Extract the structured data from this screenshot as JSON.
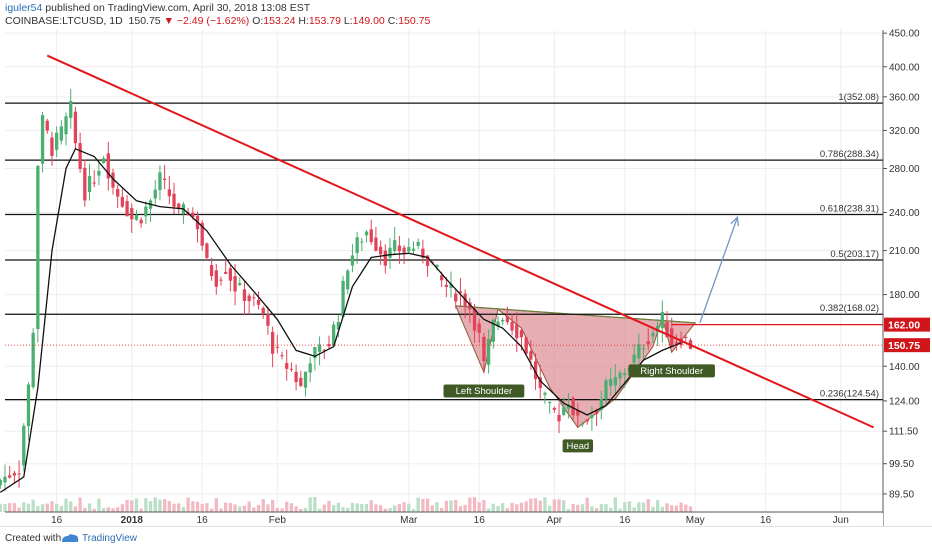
{
  "header": {
    "author": "iguler54",
    "published": "published on TradingView.com, April 30, 2018 13:08 EST",
    "symbol": "COINBASE:LTCUSD, 1D",
    "last": "150.75",
    "change": "−2.49 (−1.62%)",
    "ohlc_o_label": "O:",
    "ohlc_o": "153.24",
    "ohlc_h_label": "H:",
    "ohlc_h": "153.79",
    "ohlc_l_label": "L:",
    "ohlc_l": "149.00",
    "ohlc_c_label": "C:",
    "ohlc_c": "150.75"
  },
  "footer": {
    "created_with": "Created with",
    "brand": "TradingView"
  },
  "colors": {
    "up": "#4caf72",
    "down": "#e0435a",
    "trendline": "#e3161b",
    "ma": "#111111",
    "pattern_fill": "#d9838a",
    "arrow": "#6f97c6",
    "label_bg": "#3f5a25",
    "price_badge": "#d0161b"
  },
  "chart_data": {
    "type": "candlestick",
    "y_scale": "log",
    "ylim": [
      84,
      455
    ],
    "x_ticks": [
      "16",
      "2018",
      "16",
      "Feb",
      "Mar",
      "16",
      "Apr",
      "16",
      "May",
      "16",
      "Jun"
    ],
    "x_tick_dates": [
      "2017-12-16",
      "2018-01-01",
      "2018-01-16",
      "2018-02-01",
      "2018-03-01",
      "2018-03-16",
      "2018-04-01",
      "2018-04-16",
      "2018-05-01",
      "2018-05-16",
      "2018-06-01"
    ],
    "y_ticks": [
      "450.00",
      "400.00",
      "360.00",
      "320.00",
      "280.00",
      "240.00",
      "210.00",
      "180.00",
      "140.00",
      "124.00",
      "111.50",
      "99.50",
      "89.50"
    ],
    "y_tick_values": [
      450,
      400,
      360,
      320,
      280,
      240,
      210,
      180,
      140,
      124,
      111.5,
      99.5,
      89.5
    ],
    "fib_levels": [
      {
        "label": "1(352.08)",
        "value": 352.08
      },
      {
        "label": "0.786(288.34)",
        "value": 288.34
      },
      {
        "label": "0.618(238.31)",
        "value": 238.31
      },
      {
        "label": "0.5(203.17)",
        "value": 203.17
      },
      {
        "label": "0.382(168.02)",
        "value": 168.02
      },
      {
        "label": "0.236(124.54)",
        "value": 124.54
      }
    ],
    "horizontal_level": {
      "label": "162.00",
      "value": 162.0
    },
    "last_price": {
      "label": "150.75",
      "value": 150.75
    },
    "trendline": {
      "from": {
        "date": "2017-12-14",
        "value": 416
      },
      "to": {
        "date": "2018-06-08",
        "value": 113
      }
    },
    "projection_arrow": {
      "from": {
        "date": "2018-05-02",
        "value": 163
      },
      "to": {
        "date": "2018-05-10",
        "value": 236
      }
    },
    "pattern": {
      "left_shoulder": {
        "date": "2018-03-17",
        "value": 137
      },
      "head": {
        "date": "2018-04-06",
        "value": 113
      },
      "right_shoulder": {
        "date": "2018-04-26",
        "value": 147
      },
      "neckline": [
        {
          "date": "2018-03-11",
          "value": 173
        },
        {
          "date": "2018-05-01",
          "value": 163
        }
      ]
    },
    "annotations": [
      {
        "text": "Left Shoulder",
        "date": "2018-03-17",
        "value": 137
      },
      {
        "text": "Head",
        "date": "2018-04-06",
        "value": 113
      },
      {
        "text": "Right Shoulder",
        "date": "2018-04-26",
        "value": 147
      }
    ],
    "close_path": [
      [
        "2017-12-04",
        94
      ],
      [
        "2017-12-08",
        98
      ],
      [
        "2017-12-10",
        130
      ],
      [
        "2017-12-11",
        160
      ],
      [
        "2017-12-12",
        285
      ],
      [
        "2017-12-13",
        330
      ],
      [
        "2017-12-15",
        300
      ],
      [
        "2017-12-17",
        318
      ],
      [
        "2017-12-19",
        345
      ],
      [
        "2017-12-20",
        305
      ],
      [
        "2017-12-22",
        258
      ],
      [
        "2017-12-24",
        272
      ],
      [
        "2017-12-26",
        295
      ],
      [
        "2017-12-28",
        262
      ],
      [
        "2017-12-30",
        250
      ],
      [
        "2018-01-01",
        235
      ],
      [
        "2018-01-03",
        237
      ],
      [
        "2018-01-05",
        250
      ],
      [
        "2018-01-07",
        270
      ],
      [
        "2018-01-09",
        255
      ],
      [
        "2018-01-11",
        238
      ],
      [
        "2018-01-13",
        242
      ],
      [
        "2018-01-15",
        230
      ],
      [
        "2018-01-17",
        200
      ],
      [
        "2018-01-19",
        190
      ],
      [
        "2018-01-21",
        198
      ],
      [
        "2018-01-23",
        185
      ],
      [
        "2018-01-25",
        180
      ],
      [
        "2018-01-27",
        175
      ],
      [
        "2018-01-29",
        168
      ],
      [
        "2018-01-31",
        150
      ],
      [
        "2018-02-02",
        142
      ],
      [
        "2018-02-04",
        138
      ],
      [
        "2018-02-06",
        130
      ],
      [
        "2018-02-08",
        145
      ],
      [
        "2018-02-10",
        148
      ],
      [
        "2018-02-12",
        152
      ],
      [
        "2018-02-14",
        168
      ],
      [
        "2018-02-16",
        200
      ],
      [
        "2018-02-18",
        215
      ],
      [
        "2018-02-20",
        225
      ],
      [
        "2018-02-22",
        215
      ],
      [
        "2018-02-24",
        205
      ],
      [
        "2018-02-26",
        212
      ],
      [
        "2018-02-28",
        210
      ],
      [
        "2018-03-02",
        213
      ],
      [
        "2018-03-04",
        208
      ],
      [
        "2018-03-06",
        200
      ],
      [
        "2018-03-08",
        188
      ],
      [
        "2018-03-10",
        182
      ],
      [
        "2018-03-12",
        180
      ],
      [
        "2018-03-14",
        172
      ],
      [
        "2018-03-16",
        155
      ],
      [
        "2018-03-17",
        140
      ],
      [
        "2018-03-19",
        162
      ],
      [
        "2018-03-21",
        168
      ],
      [
        "2018-03-23",
        162
      ],
      [
        "2018-03-25",
        155
      ],
      [
        "2018-03-27",
        142
      ],
      [
        "2018-03-29",
        128
      ],
      [
        "2018-03-31",
        120
      ],
      [
        "2018-04-02",
        118
      ],
      [
        "2018-04-04",
        125
      ],
      [
        "2018-04-06",
        115
      ],
      [
        "2018-04-08",
        117
      ],
      [
        "2018-04-10",
        121
      ],
      [
        "2018-04-12",
        130
      ],
      [
        "2018-04-14",
        133
      ],
      [
        "2018-04-16",
        138
      ],
      [
        "2018-04-18",
        144
      ],
      [
        "2018-04-20",
        152
      ],
      [
        "2018-04-22",
        158
      ],
      [
        "2018-04-24",
        165
      ],
      [
        "2018-04-26",
        152
      ],
      [
        "2018-04-28",
        155
      ],
      [
        "2018-04-30",
        151
      ]
    ],
    "moving_average": [
      [
        "2017-12-04",
        90
      ],
      [
        "2017-12-09",
        95
      ],
      [
        "2017-12-12",
        130
      ],
      [
        "2017-12-15",
        210
      ],
      [
        "2017-12-18",
        280
      ],
      [
        "2017-12-20",
        300
      ],
      [
        "2017-12-24",
        292
      ],
      [
        "2017-12-28",
        270
      ],
      [
        "2018-01-02",
        250
      ],
      [
        "2018-01-07",
        245
      ],
      [
        "2018-01-12",
        243
      ],
      [
        "2018-01-17",
        225
      ],
      [
        "2018-01-22",
        200
      ],
      [
        "2018-01-27",
        182
      ],
      [
        "2018-02-01",
        165
      ],
      [
        "2018-02-05",
        148
      ],
      [
        "2018-02-09",
        145
      ],
      [
        "2018-02-13",
        150
      ],
      [
        "2018-02-17",
        185
      ],
      [
        "2018-02-21",
        205
      ],
      [
        "2018-02-25",
        207
      ],
      [
        "2018-03-01",
        208
      ],
      [
        "2018-03-05",
        205
      ],
      [
        "2018-03-09",
        190
      ],
      [
        "2018-03-13",
        177
      ],
      [
        "2018-03-17",
        165
      ],
      [
        "2018-03-21",
        160
      ],
      [
        "2018-03-25",
        150
      ],
      [
        "2018-03-29",
        133
      ],
      [
        "2018-04-03",
        123
      ],
      [
        "2018-04-08",
        118
      ],
      [
        "2018-04-12",
        122
      ],
      [
        "2018-04-16",
        132
      ],
      [
        "2018-04-20",
        143
      ],
      [
        "2018-04-24",
        148
      ],
      [
        "2018-04-28",
        152
      ]
    ]
  }
}
